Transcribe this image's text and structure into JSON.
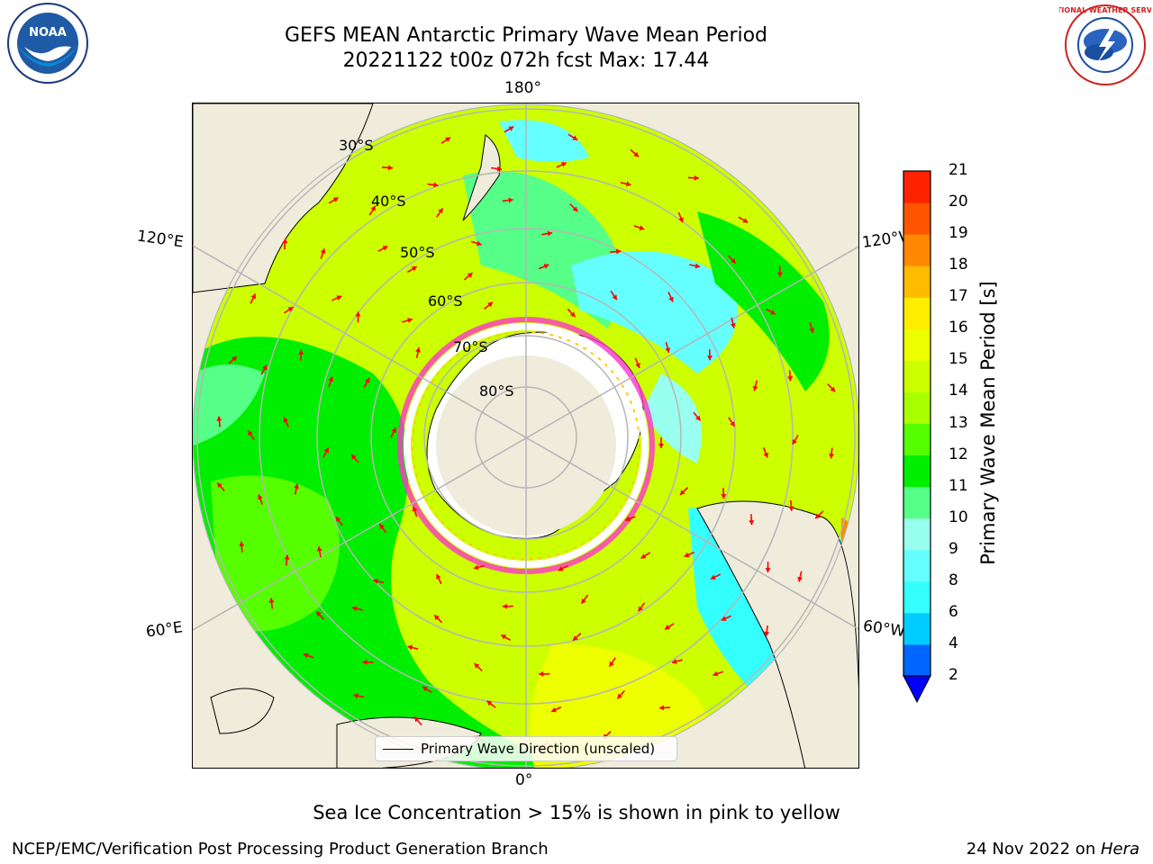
{
  "header": {
    "title_line1": "GEFS MEAN Antarctic Primary Wave Mean Period",
    "title_line2": "20221122 t00z 072h fcst   Max: 17.44",
    "left_logo_text": "NOAA",
    "right_logo_text": "NATIONAL WEATHER SERVICE"
  },
  "map": {
    "projection": "south-polar-stereographic",
    "lon_labels": {
      "top": "180°",
      "bottom": "0°",
      "upper_left": "120°E",
      "upper_right": "120°W",
      "lower_left": "60°E",
      "lower_right": "60°W"
    },
    "lat_labels": [
      "30°S",
      "40°S",
      "50°S",
      "60°S",
      "70°S",
      "80°S"
    ],
    "vector_legend": "Primary Wave Direction (unscaled)",
    "vector_color": "#ff0000",
    "ice_colors": [
      "#ff33cc",
      "#ff66ff",
      "#ffcc00",
      "#ffaa33"
    ]
  },
  "colorbar": {
    "label": "Primary Wave Mean Period [s]",
    "ticks": [
      "2",
      "4",
      "6",
      "8",
      "9",
      "10",
      "11",
      "12",
      "13",
      "14",
      "15",
      "16",
      "17",
      "18",
      "19",
      "20",
      "21"
    ],
    "colors": [
      "#0066ff",
      "#00ccff",
      "#33ffff",
      "#66ffff",
      "#99ffee",
      "#55ff88",
      "#00ee00",
      "#55ff00",
      "#aaff00",
      "#ccff00",
      "#eeff00",
      "#ffee00",
      "#ffbb00",
      "#ff8800",
      "#ff5500",
      "#ff2200"
    ],
    "under_color": "#0000ff"
  },
  "caption": "Sea Ice Concentration > 15% is shown in pink to yellow",
  "footer": {
    "left": "NCEP/EMC/Verification Post Processing Product Generation Branch",
    "right_date": "24 Nov 2022 on ",
    "right_host": "Hera"
  }
}
